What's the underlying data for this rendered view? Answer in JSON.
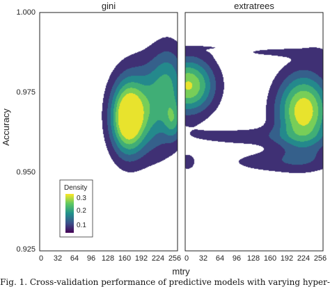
{
  "figure": {
    "caption": "Fig. 1. Cross-validation performance of predictive models with varying hyper-"
  },
  "chart_data": {
    "type": "density2d",
    "xlabel": "mtry",
    "ylabel": "Accuracy",
    "xlim": [
      0,
      256
    ],
    "ylim": [
      0.925,
      1.0
    ],
    "xticks": [
      0,
      32,
      64,
      96,
      128,
      160,
      192,
      224,
      256
    ],
    "xtick_labels": [
      "0",
      "32",
      "64",
      "96",
      "128",
      "160",
      "192",
      "224",
      "256"
    ],
    "yticks": [
      0.925,
      0.95,
      0.975,
      1.0
    ],
    "ytick_labels": [
      "0.925",
      "0.950",
      "0.975",
      "1.000"
    ],
    "legend": {
      "title": "Density",
      "ticks": [
        0.1,
        0.2,
        0.3
      ],
      "tick_labels": [
        "0.1",
        "0.2",
        "0.3"
      ],
      "range": [
        0.02,
        0.33
      ],
      "placement": "bottom-left",
      "colors": [
        "#440154",
        "#3b528b",
        "#21918c",
        "#5ec962",
        "#fde725"
      ]
    },
    "panels": [
      {
        "title": "gini",
        "components": [
          {
            "x": 163,
            "y": 0.9667,
            "sx": 21,
            "sy": 0.0075,
            "w": 1.0
          },
          {
            "x": 205,
            "y": 0.97,
            "sx": 40,
            "sy": 0.01,
            "w": 0.55
          },
          {
            "x": 248,
            "y": 0.966,
            "sx": 11,
            "sy": 0.004,
            "w": 0.35
          },
          {
            "x": 240,
            "y": 0.979,
            "sx": 22,
            "sy": 0.008,
            "w": 0.35
          },
          {
            "x": 37,
            "y": 0.976,
            "sx": 7,
            "sy": 0.0018,
            "w": 0.1
          }
        ],
        "levels": [
          0.04,
          0.09,
          0.14,
          0.19,
          0.24,
          0.29
        ]
      },
      {
        "title": "extratrees",
        "components": [
          {
            "x": 220,
            "y": 0.969,
            "sx": 34,
            "sy": 0.008,
            "w": 1.0
          },
          {
            "x": 6,
            "y": 0.977,
            "sx": 33,
            "sy": 0.006,
            "w": 0.9
          },
          {
            "x": 120,
            "y": 0.961,
            "sx": 95,
            "sy": 0.0022,
            "w": 0.18
          },
          {
            "x": 175,
            "y": 0.953,
            "sx": 75,
            "sy": 0.0026,
            "w": 0.2
          },
          {
            "x": 4,
            "y": 0.953,
            "sx": 11,
            "sy": 0.002,
            "w": 0.2
          },
          {
            "x": 160,
            "y": 0.9875,
            "sx": 60,
            "sy": 0.0012,
            "w": 0.14
          },
          {
            "x": 40,
            "y": 0.989,
            "sx": 60,
            "sy": 0.0004,
            "w": 0.07
          },
          {
            "x": 245,
            "y": 0.987,
            "sx": 18,
            "sy": 0.002,
            "w": 0.1
          }
        ],
        "levels": [
          0.04,
          0.09,
          0.14,
          0.19,
          0.24,
          0.29
        ]
      }
    ]
  }
}
